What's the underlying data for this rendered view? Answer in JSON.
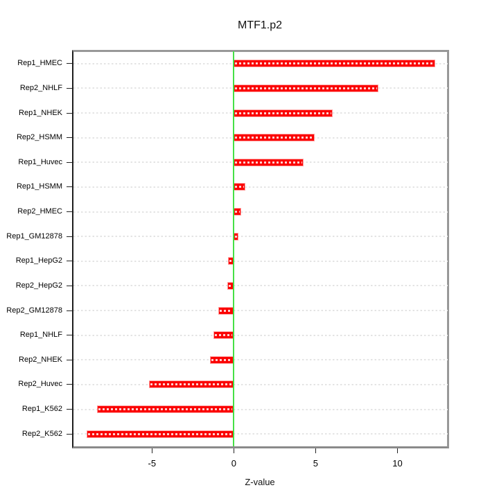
{
  "title": "MTF1.p2",
  "chart_data": {
    "type": "bar",
    "orientation": "horizontal",
    "title": "MTF1.p2",
    "xlabel": "Z-value",
    "ylabel": "",
    "categories": [
      "Rep1_HMEC",
      "Rep2_NHLF",
      "Rep1_NHEK",
      "Rep2_HSMM",
      "Rep1_Huvec",
      "Rep1_HSMM",
      "Rep2_HMEC",
      "Rep1_GM12878",
      "Rep1_HepG2",
      "Rep2_HepG2",
      "Rep2_GM12878",
      "Rep1_NHLF",
      "Rep2_NHEK",
      "Rep2_Huvec",
      "Rep1_K562",
      "Rep2_K562"
    ],
    "values": [
      12.3,
      8.85,
      6.05,
      4.95,
      4.25,
      0.7,
      0.45,
      0.3,
      -0.35,
      -0.4,
      -0.95,
      -1.25,
      -1.45,
      -5.2,
      -8.35,
      -9.0
    ],
    "xlim": [
      -9.8,
      13.05
    ],
    "xticks": [
      -5,
      0,
      5,
      10
    ],
    "xtick_labels": [
      "-5",
      "0",
      "5",
      "10"
    ],
    "grid": "horizontal dotted line per category",
    "legend": "none",
    "zero_reference_line": 0,
    "colors": {
      "bar_fill": "#fb0101",
      "bar_border": "#ff9e9e",
      "bar_dash_overlay": "rgba(255,255,255,0.82)",
      "zero_line": "#46e046",
      "grid_dot": "#e4e4e4",
      "tick": "#222222",
      "text": "#000000"
    }
  }
}
